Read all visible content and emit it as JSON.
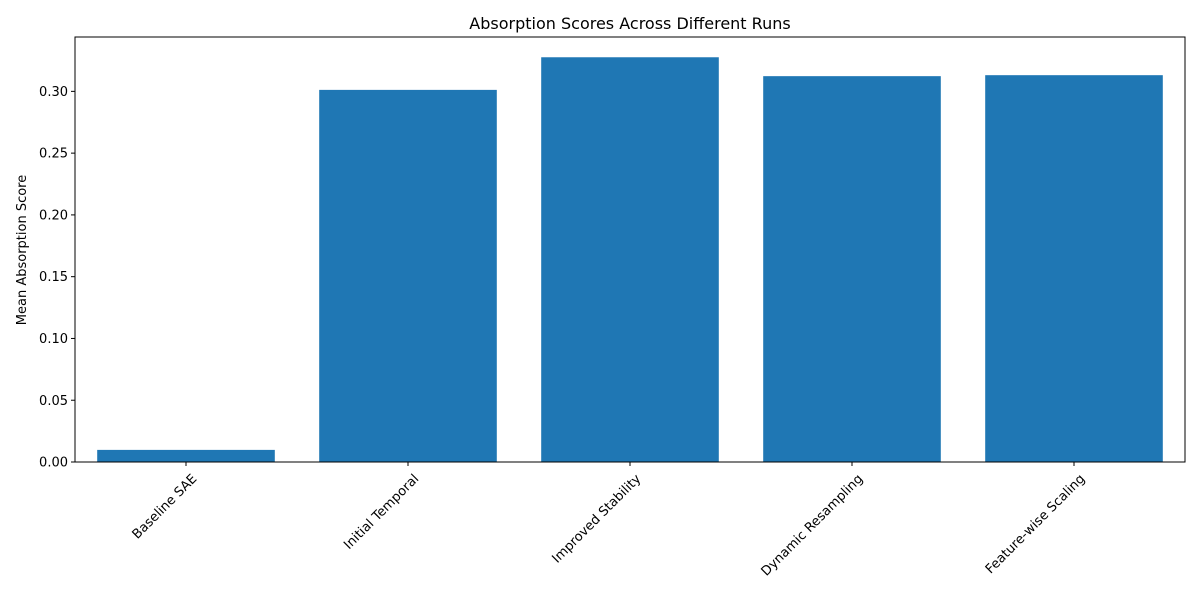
{
  "chart_data": {
    "type": "bar",
    "title": "Absorption Scores Across Different Runs",
    "xlabel": "",
    "ylabel": "Mean Absorption Score",
    "categories": [
      "Baseline SAE",
      "Initial Temporal",
      "Improved Stability",
      "Dynamic Resampling",
      "Feature-wise Scaling"
    ],
    "values": [
      0.0098,
      0.3012,
      0.3276,
      0.3123,
      0.3131
    ],
    "ylim": [
      0,
      0.344
    ],
    "yticks": [
      "0.00",
      "0.05",
      "0.10",
      "0.15",
      "0.20",
      "0.25",
      "0.30"
    ],
    "xtick_rotation_deg": 45,
    "grid": false,
    "legend": "none",
    "bar_color": "#1f77b4"
  }
}
